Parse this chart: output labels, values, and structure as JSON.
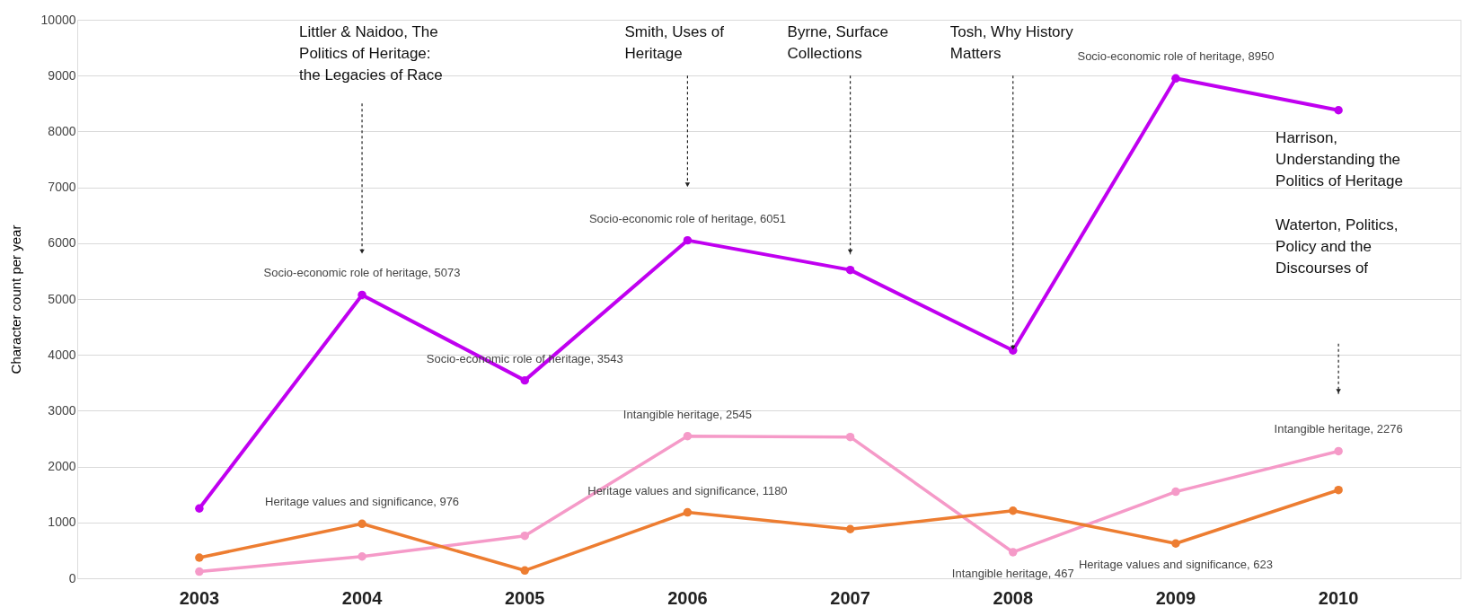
{
  "chart_data": {
    "type": "line",
    "ylabel": "Character count per year",
    "categories": [
      "2003",
      "2004",
      "2005",
      "2006",
      "2007",
      "2008",
      "2009",
      "2010"
    ],
    "series": [
      {
        "color": "#c000f0",
        "values": [
          1250,
          5073,
          3543,
          6051,
          5520,
          4080,
          8950,
          8380
        ],
        "value_labels": [
          null,
          "Socio-economic role of heritage, 5073",
          "Socio-economic role of heritage, 3543",
          "Socio-economic role of heritage, 6051",
          null,
          null,
          "Socio-economic role of heritage, 8950",
          null
        ]
      },
      {
        "color": "#f59ac8",
        "values": [
          120,
          390,
          760,
          2545,
          2530,
          467,
          1550,
          2276
        ],
        "value_labels": [
          null,
          null,
          null,
          "Intangible heritage, 2545",
          null,
          "Intangible heritage, 467",
          null,
          "Intangible heritage, 2276"
        ]
      },
      {
        "color": "#ed7d31",
        "values": [
          370,
          976,
          140,
          1180,
          880,
          1210,
          623,
          1580
        ],
        "value_labels": [
          null,
          "Heritage values and significance, 976",
          null,
          "Heritage values and significance, 1180",
          null,
          null,
          "Heritage values and significance, 623",
          null
        ]
      }
    ],
    "ylim": [
      0,
      10000
    ],
    "yticks": [
      0,
      1000,
      2000,
      3000,
      4000,
      5000,
      6000,
      7000,
      8000,
      9000,
      10000
    ],
    "grid": "y",
    "marker": "circle",
    "line_style": "solid",
    "annotations": [
      "Littler & Naidoo, The Politics of Heritage: the Legacies of Race",
      "Smith, Uses of Heritage",
      "Byrne, Surface Collections",
      {
        "text": "Tosh, Why History Matters",
        "x": "2008",
        "y": 4080
      },
      "Harrison, Understanding the Politics of Heritage",
      "Waterton, Politics, Policy and the Discourses of"
    ]
  }
}
